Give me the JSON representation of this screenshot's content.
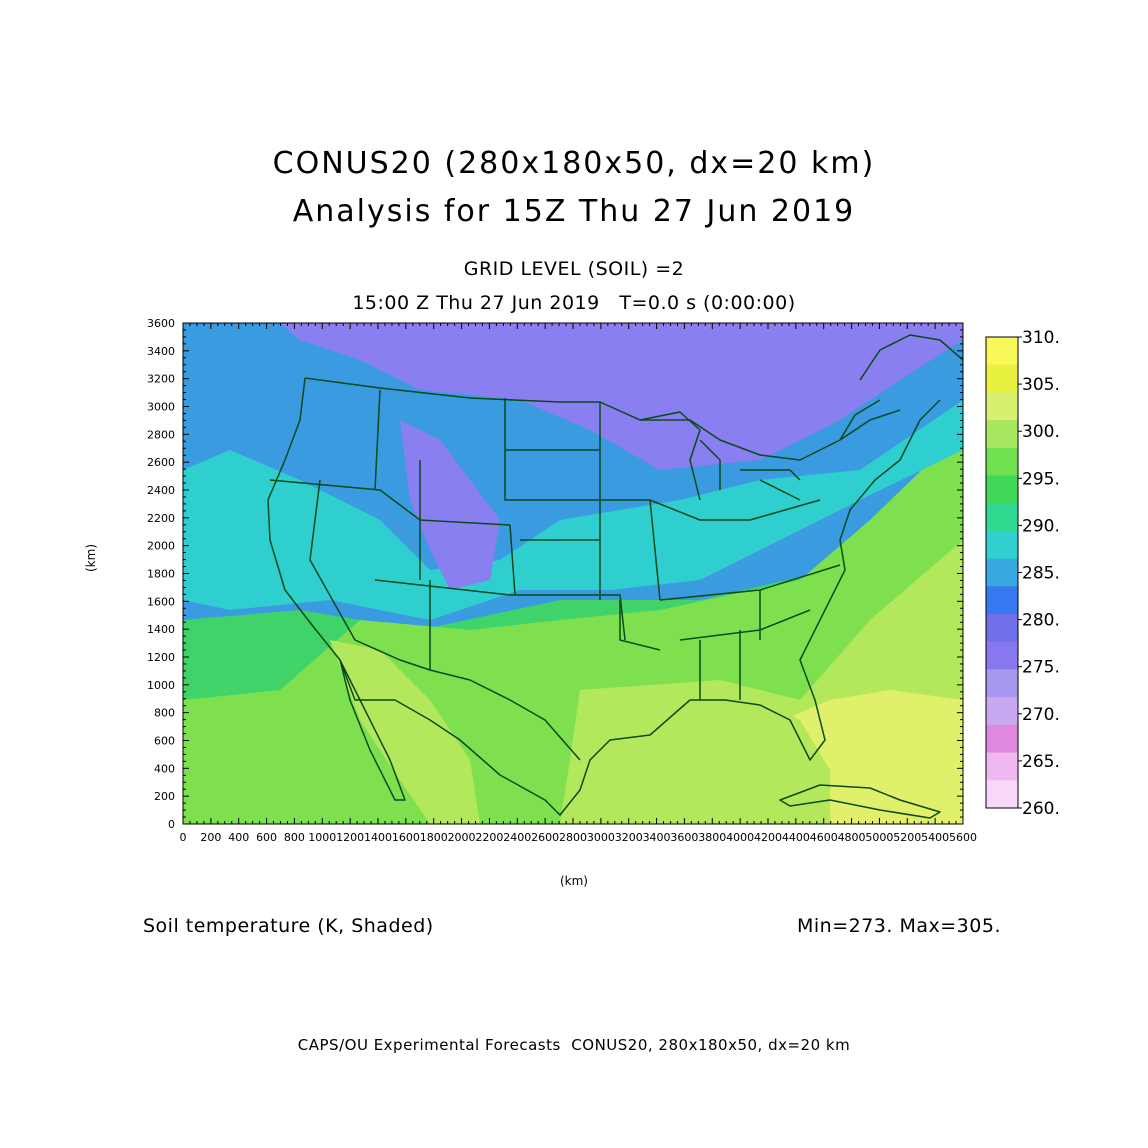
{
  "header": {
    "title_line1": "CONUS20 (280x180x50, dx=20 km)",
    "title_line2": "Analysis for 15Z Thu 27 Jun 2019",
    "grid_level": "GRID LEVEL (SOIL) =2",
    "valid_time": "15:00 Z Thu 27 Jun 2019   T=0.0 s (0:00:00)"
  },
  "axes": {
    "xlabel": "(km)",
    "ylabel": "(km)",
    "xlim": [
      0,
      5600
    ],
    "ylim": [
      0,
      3600
    ],
    "x_ticks": [
      0,
      200,
      400,
      600,
      800,
      1000,
      1200,
      1400,
      1600,
      1800,
      2000,
      2200,
      2400,
      2600,
      2800,
      3000,
      3200,
      3400,
      3600,
      3800,
      4000,
      4200,
      4400,
      4600,
      4800,
      5000,
      5200,
      5400,
      5600
    ],
    "y_ticks": [
      0,
      200,
      400,
      600,
      800,
      1000,
      1200,
      1400,
      1600,
      1800,
      2000,
      2200,
      2400,
      2600,
      2800,
      3000,
      3200,
      3400,
      3600
    ]
  },
  "colorbar": {
    "labels": [
      "310.",
      "305.",
      "300.",
      "295.",
      "290.",
      "285.",
      "280.",
      "275.",
      "270.",
      "265.",
      "260."
    ],
    "colors_top_to_bottom": [
      "#f8f858",
      "#e8f040",
      "#d8f070",
      "#a8e860",
      "#70e050",
      "#40d858",
      "#30d890",
      "#30d0d0",
      "#38a8e0",
      "#3878f0",
      "#7070e8",
      "#8878f0",
      "#a898f0",
      "#c8a8f0",
      "#e088e0",
      "#f0b8f0",
      "#f8d8f8"
    ]
  },
  "map": {
    "field": "Soil temperature",
    "colors": {
      "cold": "#8a7ff0",
      "cool": "#3a9be0",
      "mild": "#30cfcf",
      "warmish": "#3fd36a",
      "warm": "#7ee04f",
      "hot": "#b4e85c",
      "hottest": "#e1f06a",
      "boundary": "#0a4a1a"
    }
  },
  "footer": {
    "field_label": "Soil temperature (K, Shaded)",
    "min_max": "Min=273. Max=305.",
    "credit": "CAPS/OU Experimental Forecasts  CONUS20, 280x180x50, dx=20 km"
  }
}
